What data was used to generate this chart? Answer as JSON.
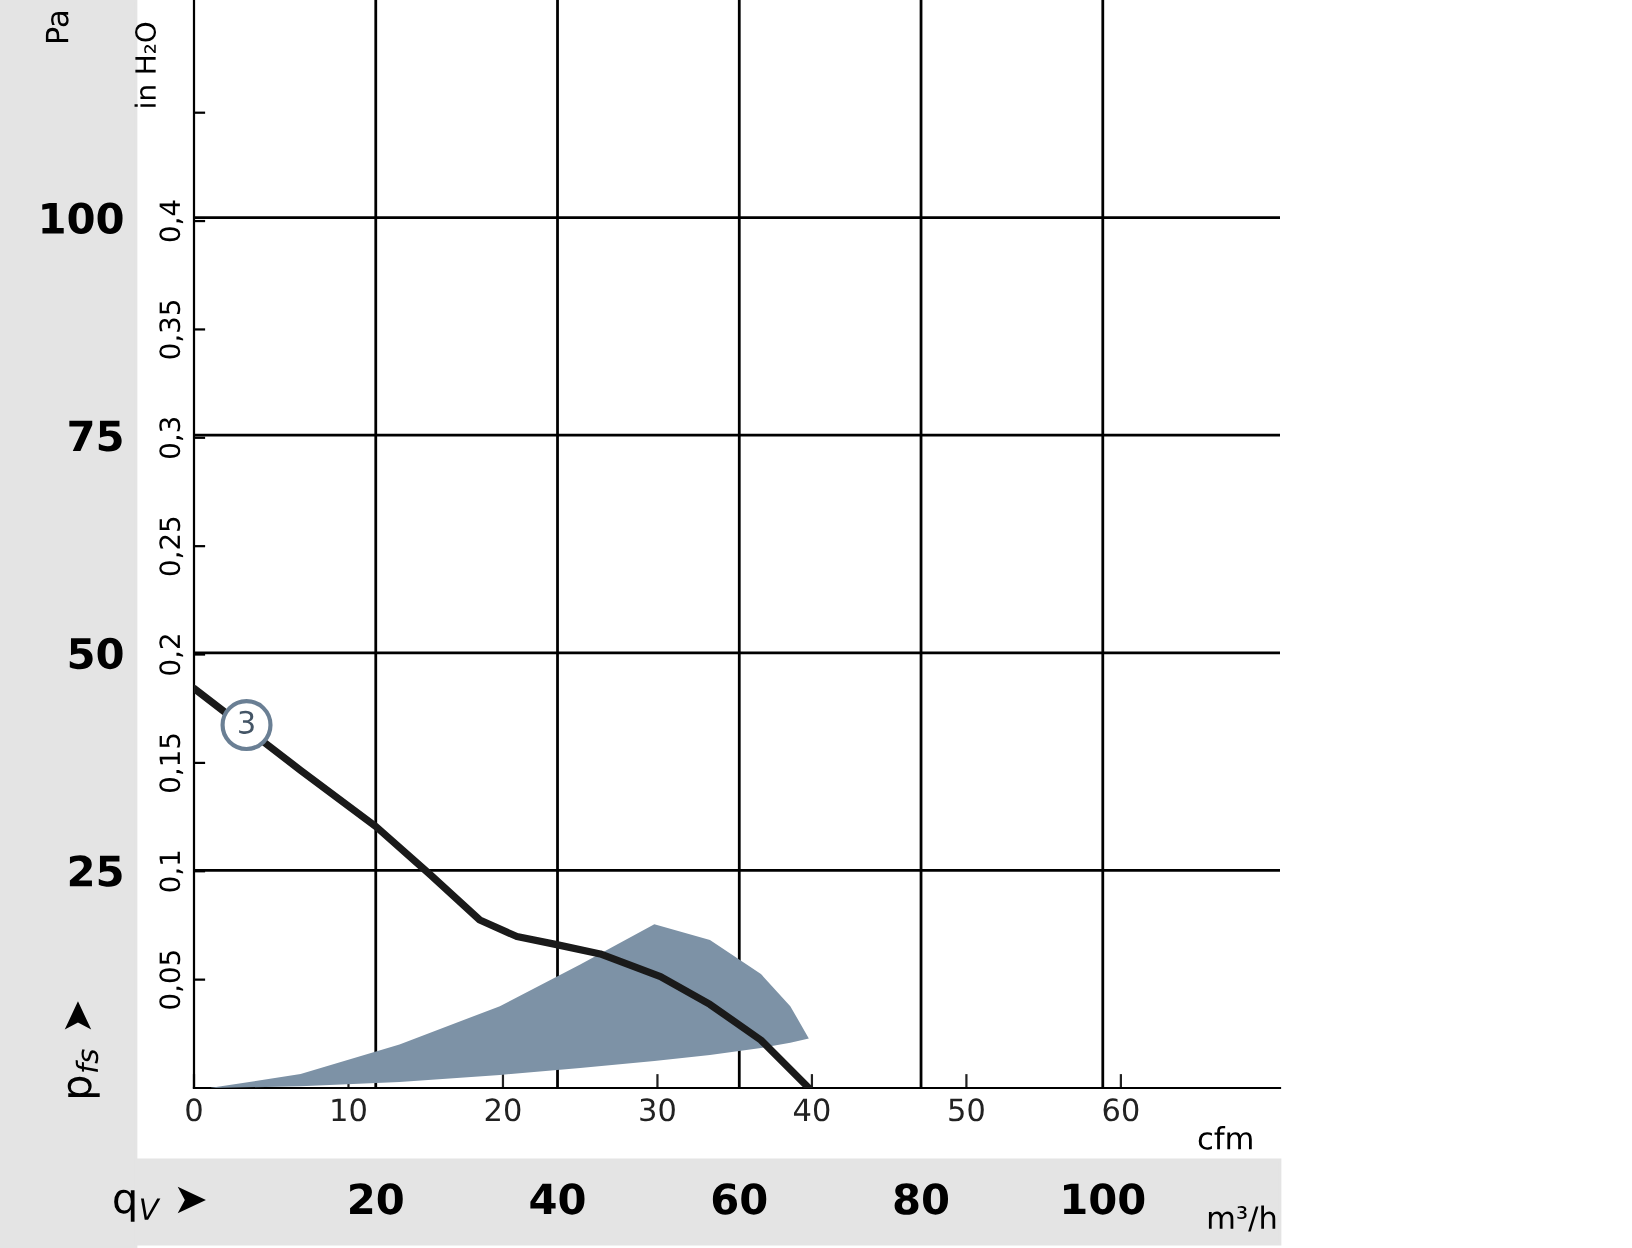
{
  "chart_data": {
    "type": "line",
    "ylabel": "Pa",
    "y2label": "in H₂O",
    "xlabel": "cfm",
    "x2label": "m³/h",
    "xlim": [
      0,
      70.3
    ],
    "xticks": [
      0,
      10,
      20,
      30,
      40,
      50,
      60
    ],
    "x2lim": [
      0,
      119.5
    ],
    "x2ticks": [
      20,
      40,
      60,
      80,
      100
    ],
    "ylim": [
      0,
      125
    ],
    "yticks": [
      25,
      50,
      75,
      100
    ],
    "y2lim": [
      0,
      0.502
    ],
    "y2ticks": [
      {
        "value": 0.05,
        "label": "0,05"
      },
      {
        "value": 0.1,
        "label": "0,1"
      },
      {
        "value": 0.15,
        "label": "0,15"
      },
      {
        "value": 0.2,
        "label": "0,2"
      },
      {
        "value": 0.25,
        "label": "0,25"
      },
      {
        "value": 0.3,
        "label": "0,3"
      },
      {
        "value": 0.35,
        "label": "0,35"
      },
      {
        "value": 0.4,
        "label": "0,4"
      },
      {
        "value": 0.45,
        "label": null
      }
    ],
    "grid": true,
    "marker": "none",
    "line_style": "solid",
    "series": [
      {
        "type": "area",
        "color": "#7d92a6",
        "x": [
          1,
          6.9,
          13.3,
          19.8,
          25,
          29.8,
          33.4,
          36.7,
          38.6,
          39.8,
          38.6,
          36.7,
          33.4,
          29.8,
          25,
          19.8,
          13.3,
          6.9,
          1
        ],
        "values": [
          0,
          1.6,
          5.0,
          9.4,
          14.2,
          18.8,
          17.0,
          13.1,
          9.4,
          5.7,
          5.2,
          4.6,
          3.8,
          3.1,
          2.3,
          1.5,
          0.7,
          0.2,
          0
        ]
      },
      {
        "color": "#1a1a1a",
        "x": [
          0,
          6.9,
          11.8,
          15.3,
          18.5,
          20.9,
          23.4,
          26.3,
          30.2,
          33.4,
          36.7,
          39.8
        ],
        "values": [
          45.9,
          36.5,
          30.0,
          24.5,
          19.3,
          17.4,
          16.5,
          15.4,
          12.8,
          9.6,
          5.5,
          0
        ]
      }
    ],
    "annotations": [
      "p$_{fs}$ ➤",
      "q$_{V}$ ➤",
      {
        "text": "3",
        "x": 3.4,
        "y": 41.7
      }
    ]
  }
}
